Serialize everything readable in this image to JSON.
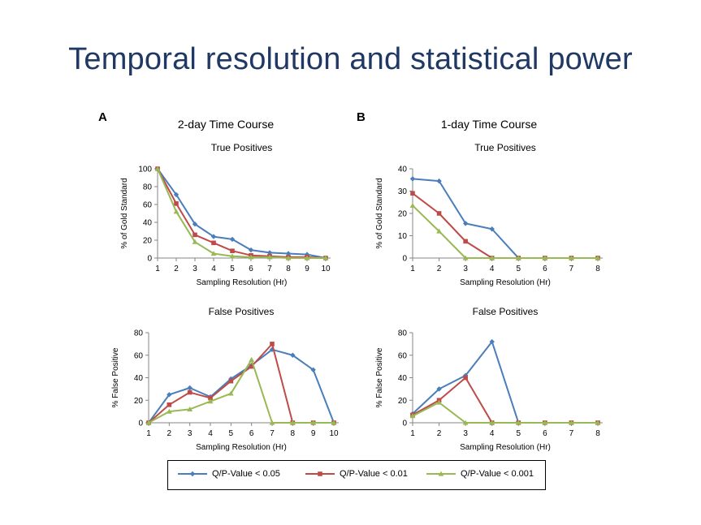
{
  "slide": {
    "title": "Temporal resolution and statistical power"
  },
  "panels": [
    {
      "letter": "A",
      "course_title": "2-day Time Course"
    },
    {
      "letter": "B",
      "course_title": "1-day Time Course"
    }
  ],
  "legend": {
    "items": [
      {
        "label": "Q/P-Value  < 0.05",
        "color": "#4a7ebb",
        "marker": "diamond"
      },
      {
        "label": "Q/P-Value  < 0.01",
        "color": "#be4b48",
        "marker": "square"
      },
      {
        "label": "Q/P-Value  < 0.001",
        "color": "#98b954",
        "marker": "triangle"
      }
    ]
  },
  "chart_data": [
    {
      "id": "a-true",
      "type": "line",
      "title": "True Positives",
      "xlabel": "Sampling Resolution (Hr)",
      "ylabel": "% of Gold Standard",
      "x": [
        1,
        2,
        3,
        4,
        5,
        6,
        7,
        8,
        9,
        10
      ],
      "xlim": [
        1,
        10
      ],
      "ylim": [
        0,
        100
      ],
      "yticks": [
        0,
        20,
        40,
        60,
        80,
        100
      ],
      "series": [
        {
          "name": "Q/P-Value  < 0.05",
          "color": "#4a7ebb",
          "marker": "diamond",
          "values": [
            100,
            71,
            38,
            24,
            21,
            9,
            6,
            5,
            4,
            0
          ]
        },
        {
          "name": "Q/P-Value  < 0.01",
          "color": "#be4b48",
          "marker": "square",
          "values": [
            100,
            61,
            26,
            17,
            8,
            3,
            2,
            1,
            1,
            0
          ]
        },
        {
          "name": "Q/P-Value  < 0.001",
          "color": "#98b954",
          "marker": "triangle",
          "values": [
            100,
            52,
            18,
            5,
            2,
            1,
            1,
            0,
            0,
            0
          ]
        }
      ]
    },
    {
      "id": "b-true",
      "type": "line",
      "title": "True Positives",
      "xlabel": "Sampling Resolution (Hr)",
      "ylabel": "% of Gold Standard",
      "x": [
        1,
        2,
        3,
        4,
        5,
        6,
        7,
        8
      ],
      "xlim": [
        1,
        8
      ],
      "ylim": [
        0,
        40
      ],
      "yticks": [
        0,
        10,
        20,
        30,
        40
      ],
      "series": [
        {
          "name": "Q/P-Value  < 0.05",
          "color": "#4a7ebb",
          "marker": "diamond",
          "values": [
            35.5,
            34.5,
            15.5,
            13,
            0,
            0,
            0,
            0
          ]
        },
        {
          "name": "Q/P-Value  < 0.01",
          "color": "#be4b48",
          "marker": "square",
          "values": [
            29,
            20,
            7.5,
            0,
            0,
            0,
            0,
            0
          ]
        },
        {
          "name": "Q/P-Value  < 0.001",
          "color": "#98b954",
          "marker": "triangle",
          "values": [
            23.5,
            12,
            0,
            0,
            0,
            0,
            0,
            0
          ]
        }
      ]
    },
    {
      "id": "a-false",
      "type": "line",
      "title": "False Positives",
      "xlabel": "Sampling Resolution (Hr)",
      "ylabel": "% False Positive",
      "x": [
        1,
        2,
        3,
        4,
        5,
        6,
        7,
        8,
        9,
        10
      ],
      "xlim": [
        1,
        10
      ],
      "ylim": [
        0,
        80
      ],
      "yticks": [
        0,
        20,
        40,
        60,
        80
      ],
      "series": [
        {
          "name": "Q/P-Value  < 0.05",
          "color": "#4a7ebb",
          "marker": "diamond",
          "values": [
            0,
            25,
            31,
            23,
            39,
            51,
            65,
            60,
            47,
            0
          ]
        },
        {
          "name": "Q/P-Value  < 0.01",
          "color": "#be4b48",
          "marker": "square",
          "values": [
            0,
            16,
            27,
            22,
            37,
            50,
            70,
            0,
            0,
            0
          ]
        },
        {
          "name": "Q/P-Value  < 0.001",
          "color": "#98b954",
          "marker": "triangle",
          "values": [
            0,
            10,
            12,
            19,
            26,
            56,
            0,
            0,
            0,
            0
          ]
        }
      ]
    },
    {
      "id": "b-false",
      "type": "line",
      "title": "False Positives",
      "xlabel": "Sampling Resolution (Hr)",
      "ylabel": "% False Positive",
      "x": [
        1,
        2,
        3,
        4,
        5,
        6,
        7,
        8
      ],
      "xlim": [
        1,
        8
      ],
      "ylim": [
        0,
        80
      ],
      "yticks": [
        0,
        20,
        40,
        60,
        80
      ],
      "series": [
        {
          "name": "Q/P-Value  < 0.05",
          "color": "#4a7ebb",
          "marker": "diamond",
          "values": [
            8,
            30,
            42,
            72,
            0,
            0,
            0,
            0
          ]
        },
        {
          "name": "Q/P-Value  < 0.01",
          "color": "#be4b48",
          "marker": "square",
          "values": [
            7,
            20,
            40,
            0,
            0,
            0,
            0,
            0
          ]
        },
        {
          "name": "Q/P-Value  < 0.001",
          "color": "#98b954",
          "marker": "triangle",
          "values": [
            6,
            18,
            0,
            0,
            0,
            0,
            0,
            0
          ]
        }
      ]
    }
  ]
}
